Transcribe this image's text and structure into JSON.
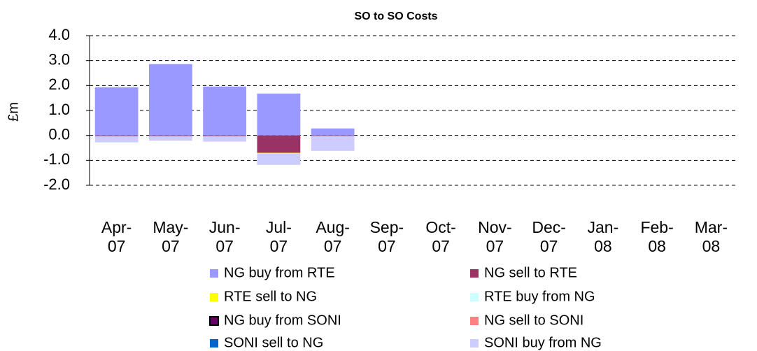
{
  "chart_data": {
    "type": "stacked_bar",
    "title": "SO to SO Costs",
    "y_label": "£m",
    "categories": [
      "Apr-07",
      "May-07",
      "Jun-07",
      "Jul-07",
      "Aug-07",
      "Sep-07",
      "Oct-07",
      "Nov-07",
      "Dec-07",
      "Jan-08",
      "Feb-08",
      "Mar-08"
    ],
    "series": [
      {
        "name": "NG buy from RTE",
        "color": "#9999ff",
        "values": [
          1.93,
          2.86,
          1.96,
          1.68,
          0.28,
          null,
          null,
          null,
          null,
          null,
          null,
          null
        ]
      },
      {
        "name": "NG sell to RTE",
        "color": "#993366",
        "values": [
          -0.03,
          -0.03,
          -0.03,
          -0.7,
          -0.02,
          null,
          null,
          null,
          null,
          null,
          null,
          null
        ]
      },
      {
        "name": "RTE sell to NG",
        "color": "#ffff00",
        "values": [
          null,
          null,
          null,
          -0.03,
          null,
          null,
          null,
          null,
          null,
          null,
          null,
          null
        ]
      },
      {
        "name": "RTE buy from NG",
        "color": "#ccffff",
        "values": [
          null,
          null,
          null,
          null,
          null,
          null,
          null,
          null,
          null,
          null,
          null,
          null
        ]
      },
      {
        "name": "NG buy from SONI",
        "color": "#660066",
        "values": [
          null,
          null,
          null,
          null,
          null,
          null,
          null,
          null,
          null,
          null,
          null,
          null
        ]
      },
      {
        "name": "NG sell to SONI",
        "color": "#ff8080",
        "values": [
          null,
          null,
          null,
          null,
          null,
          null,
          null,
          null,
          null,
          null,
          null,
          null
        ]
      },
      {
        "name": "SONI sell to NG",
        "color": "#0066cc",
        "values": [
          null,
          null,
          null,
          null,
          null,
          null,
          null,
          null,
          null,
          null,
          null,
          null
        ]
      },
      {
        "name": "SONI buy from NG",
        "color": "#ccccff",
        "values": [
          -0.25,
          -0.18,
          -0.22,
          -0.45,
          -0.6,
          null,
          null,
          null,
          null,
          null,
          null,
          null
        ]
      }
    ],
    "ylim": [
      -2,
      4
    ],
    "yticks": [
      {
        "value": -2,
        "label": "-2.0"
      },
      {
        "value": -1,
        "label": "-1.0"
      },
      {
        "value": 0,
        "label": "0.0"
      },
      {
        "value": 1,
        "label": "1.0"
      },
      {
        "value": 2,
        "label": "2.0"
      },
      {
        "value": 3,
        "label": "3.0"
      },
      {
        "value": 4,
        "label": "4.0"
      }
    ],
    "grid": true,
    "legend": "bottom"
  }
}
